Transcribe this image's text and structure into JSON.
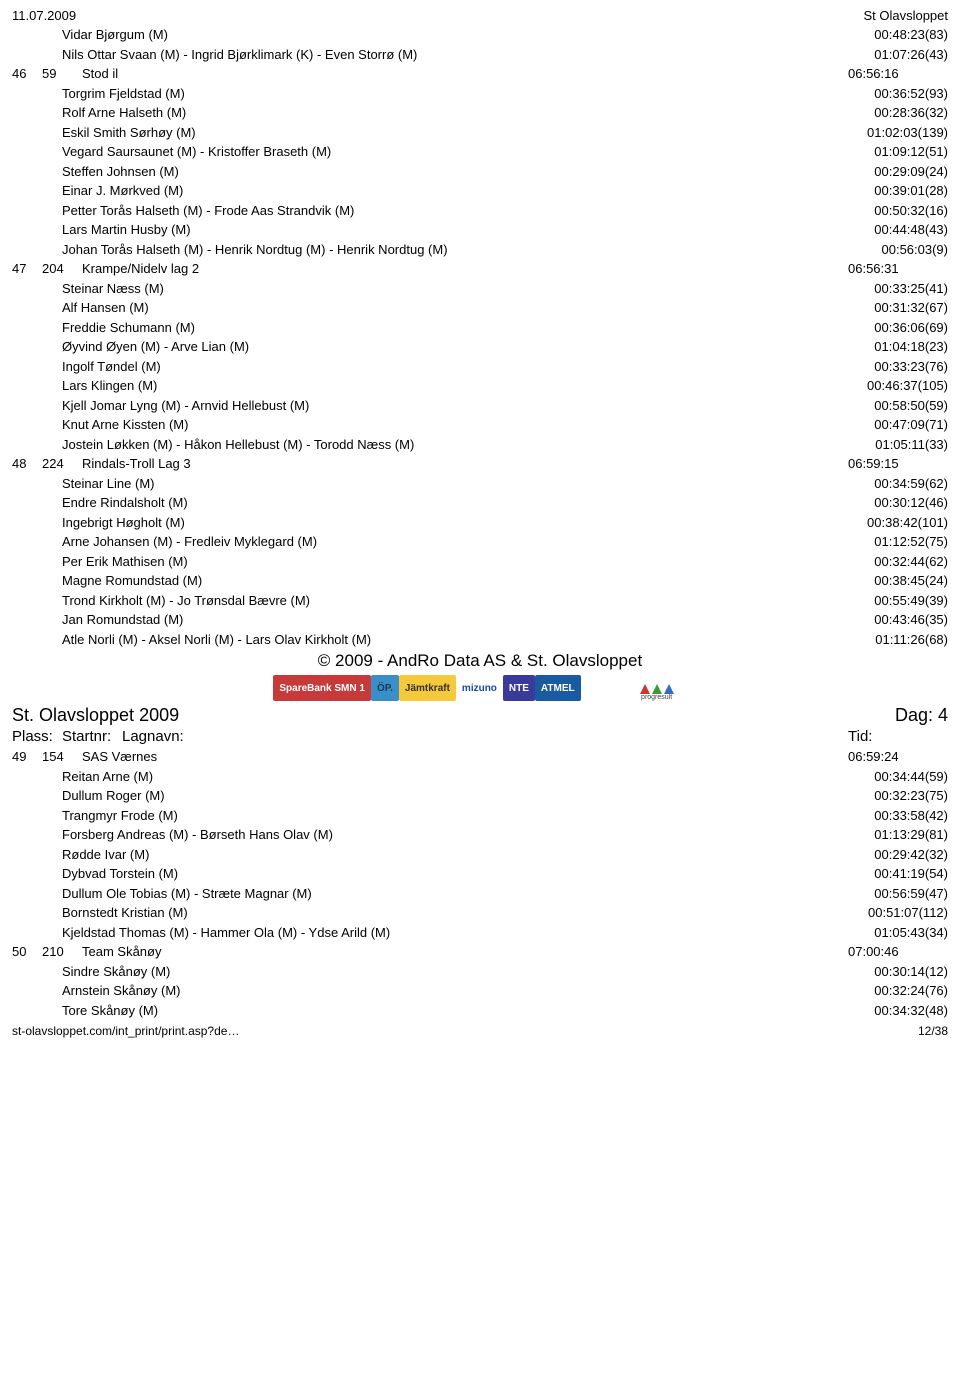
{
  "header": {
    "date": "11.07.2009",
    "event": "St Olavsloppet"
  },
  "pre": [
    {
      "name": "Vidar Bjørgum (M)",
      "time": "00:48:23(83)"
    },
    {
      "name": "Nils Ottar Svaan (M) - Ingrid Bjørklimark (K) - Even Storrø (M)",
      "time": "01:07:26(43)"
    }
  ],
  "teams": [
    {
      "plass": "46",
      "startnr": "59",
      "lagnavn": "Stod il",
      "tid": "06:56:16",
      "rows": [
        {
          "name": "Torgrim Fjeldstad (M)",
          "time": "00:36:52(93)"
        },
        {
          "name": "Rolf Arne Halseth (M)",
          "time": "00:28:36(32)"
        },
        {
          "name": "Eskil Smith Sørhøy (M)",
          "time": "01:02:03(139)"
        },
        {
          "name": "Vegard Saursaunet (M) - Kristoffer Braseth (M)",
          "time": "01:09:12(51)"
        },
        {
          "name": "Steffen Johnsen (M)",
          "time": "00:29:09(24)"
        },
        {
          "name": "Einar J. Mørkved (M)",
          "time": "00:39:01(28)"
        },
        {
          "name": "Petter Torås Halseth (M) - Frode Aas Strandvik (M)",
          "time": "00:50:32(16)"
        },
        {
          "name": "Lars Martin Husby (M)",
          "time": "00:44:48(43)"
        },
        {
          "name": "Johan Torås Halseth (M) - Henrik Nordtug (M) - Henrik Nordtug (M)",
          "time": "00:56:03(9)"
        }
      ]
    },
    {
      "plass": "47",
      "startnr": "204",
      "lagnavn": "Krampe/Nidelv lag 2",
      "tid": "06:56:31",
      "rows": [
        {
          "name": "Steinar Næss (M)",
          "time": "00:33:25(41)"
        },
        {
          "name": "Alf Hansen (M)",
          "time": "00:31:32(67)"
        },
        {
          "name": "Freddie Schumann (M)",
          "time": "00:36:06(69)"
        },
        {
          "name": "Øyvind Øyen (M) - Arve Lian (M)",
          "time": "01:04:18(23)"
        },
        {
          "name": "Ingolf Tøndel (M)",
          "time": "00:33:23(76)"
        },
        {
          "name": "Lars Klingen (M)",
          "time": "00:46:37(105)"
        },
        {
          "name": "Kjell Jomar Lyng (M) - Arnvid Hellebust (M)",
          "time": "00:58:50(59)"
        },
        {
          "name": "Knut Arne Kissten (M)",
          "time": "00:47:09(71)"
        },
        {
          "name": "Jostein Løkken (M) - Håkon Hellebust (M) - Torodd Næss (M)",
          "time": "01:05:11(33)"
        }
      ]
    },
    {
      "plass": "48",
      "startnr": "224",
      "lagnavn": "Rindals-Troll Lag 3",
      "tid": "06:59:15",
      "rows": [
        {
          "name": "Steinar Line (M)",
          "time": "00:34:59(62)"
        },
        {
          "name": "Endre Rindalsholt (M)",
          "time": "00:30:12(46)"
        },
        {
          "name": "Ingebrigt Høgholt (M)",
          "time": "00:38:42(101)"
        },
        {
          "name": "Arne Johansen (M) - Fredleiv Myklegard (M)",
          "time": "01:12:52(75)"
        },
        {
          "name": "Per Erik Mathisen (M)",
          "time": "00:32:44(62)"
        },
        {
          "name": "Magne Romundstad (M)",
          "time": "00:38:45(24)"
        },
        {
          "name": "Trond Kirkholt (M) - Jo Trønsdal Bævre (M)",
          "time": "00:55:49(39)"
        },
        {
          "name": "Jan Romundstad (M)",
          "time": "00:43:46(35)"
        },
        {
          "name": "Atle Norli (M) - Aksel Norli (M) - Lars Olav Kirkholt (M)",
          "time": "01:11:26(68)"
        }
      ]
    }
  ],
  "copyright": "© 2009 - AndRo Data AS & St. Olavsloppet",
  "sponsors": [
    {
      "label": "SpareBank SMN 1",
      "bg": "#c83a3a"
    },
    {
      "label": "ÖP.",
      "bg": "#3a8fc8",
      "textColor": "#1a3a5a"
    },
    {
      "label": "Jämtkraft",
      "bg": "#f5c939",
      "textColor": "#333"
    },
    {
      "label": "mizuno",
      "bg": "#ffffff",
      "textColor": "#1a4aa8"
    },
    {
      "label": "NTE",
      "bg": "#3a3a9a"
    },
    {
      "label": "ATMEL",
      "bg": "#1a5aa0"
    }
  ],
  "section": {
    "title": "St. Olavsloppet 2009",
    "dag": "Dag: 4",
    "cols": {
      "c1": "Plass:",
      "c2": "Startnr:",
      "c3": "Lagnavn:",
      "c4": "Tid:"
    }
  },
  "teams2": [
    {
      "plass": "49",
      "startnr": "154",
      "lagnavn": "SAS Værnes",
      "tid": "06:59:24",
      "rows": [
        {
          "name": "Reitan Arne (M)",
          "time": "00:34:44(59)"
        },
        {
          "name": "Dullum Roger (M)",
          "time": "00:32:23(75)"
        },
        {
          "name": "Trangmyr Frode (M)",
          "time": "00:33:58(42)"
        },
        {
          "name": "Forsberg Andreas (M) - Børseth Hans Olav (M)",
          "time": "01:13:29(81)"
        },
        {
          "name": "Rødde Ivar (M)",
          "time": "00:29:42(32)"
        },
        {
          "name": "Dybvad Torstein (M)",
          "time": "00:41:19(54)"
        },
        {
          "name": "Dullum Ole Tobias (M) - Stræte Magnar (M)",
          "time": "00:56:59(47)"
        },
        {
          "name": "Bornstedt Kristian (M)",
          "time": "00:51:07(112)"
        },
        {
          "name": "Kjeldstad Thomas (M) - Hammer Ola (M) - Ydse Arild (M)",
          "time": "01:05:43(34)"
        }
      ]
    },
    {
      "plass": "50",
      "startnr": "210",
      "lagnavn": "Team Skånøy",
      "tid": "07:00:46",
      "rows": [
        {
          "name": "Sindre Skånøy (M)",
          "time": "00:30:14(12)"
        },
        {
          "name": "Arnstein Skånøy (M)",
          "time": "00:32:24(76)"
        },
        {
          "name": "Tore Skånøy (M)",
          "time": "00:34:32(48)"
        }
      ]
    }
  ],
  "footer": {
    "left": "st-olavsloppet.com/int_print/print.asp?de…",
    "right": "12/38"
  },
  "progresult": {
    "label": "progresult",
    "colors": [
      "#c8392b",
      "#3a9a3a",
      "#3a6ac8"
    ]
  }
}
